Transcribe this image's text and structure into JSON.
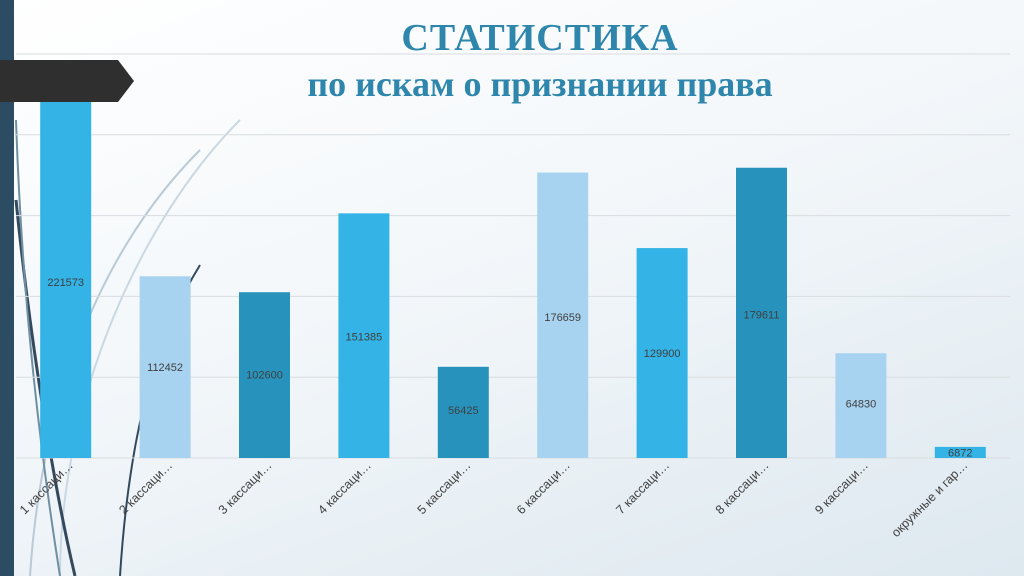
{
  "slide": {
    "title": "СТАТИСТИКА",
    "subtitle": "по искам о признании права"
  },
  "colors": {
    "title": "#2e86ad",
    "bar_bright": "#33b3e6",
    "bar_light": "#a7d3f0",
    "bar_dark": "#2793bd",
    "side_band": "#2b4c63"
  },
  "chart_data": {
    "type": "bar",
    "title": "СТАТИСТИКА по искам о признании права",
    "categories": [
      "1 кассаци…",
      "2 кассаци…",
      "3 кассаци…",
      "4 кассаци…",
      "5 кассаци…",
      "6 кассаци…",
      "7 кассаци…",
      "8 кассаци…",
      "9 кассаци…",
      "окружные и гар…"
    ],
    "values": [
      221573,
      112452,
      102600,
      151385,
      56425,
      176659,
      129900,
      179611,
      64830,
      6872
    ],
    "bar_colors": [
      "#33b3e6",
      "#a7d3f0",
      "#2793bd",
      "#33b3e6",
      "#2793bd",
      "#a7d3f0",
      "#33b3e6",
      "#2793bd",
      "#a7d3f0",
      "#33b3e6"
    ],
    "ylim": [
      0,
      250000
    ],
    "grid": true,
    "legend": "none",
    "data_labels": "inside"
  }
}
